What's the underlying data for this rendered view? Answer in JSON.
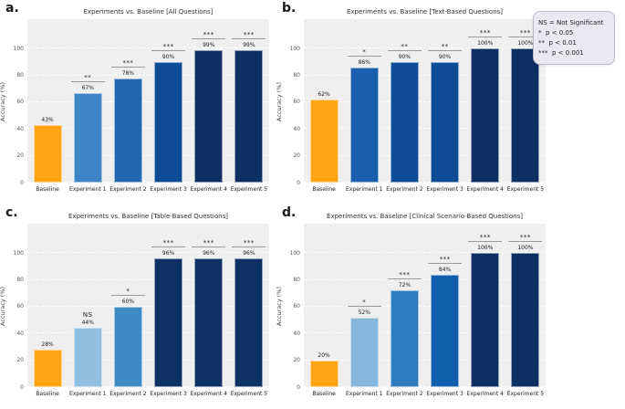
{
  "figure": {
    "ylabel": "Accuracy (%)",
    "yticks": [
      0,
      20,
      40,
      60,
      80,
      100
    ],
    "ylim": [
      0,
      122
    ],
    "categories": [
      "Baseline",
      "Experiment 1",
      "Experiment 2",
      "Experiment 3",
      "Experiment 4",
      "Experiment 5"
    ],
    "baseline_color": "#ffa513",
    "plot_background": "#efeff0"
  },
  "chart_data": [
    {
      "type": "bar",
      "panel_letter": "a.",
      "title": "Experiments vs. Baseline [All Questions]",
      "categories": [
        "Baseline",
        "Experiment 1",
        "Experiment 2",
        "Experiment 3",
        "Experiment 4",
        "Experiment 5"
      ],
      "values": [
        43,
        67,
        78,
        90,
        99,
        99
      ],
      "value_labels": [
        "43%",
        "67%",
        "78%",
        "90%",
        "99%",
        "99%"
      ],
      "significance": [
        "",
        "**",
        "***",
        "***",
        "***",
        "***"
      ],
      "bar_colors": [
        "#ffa513",
        "#3d85c6",
        "#2268ae",
        "#0f4c96",
        "#0c2e63",
        "#0c2e63"
      ],
      "dotted": [
        false,
        false,
        false,
        false,
        false,
        false
      ],
      "xlabel": "",
      "ylabel": "Accuracy (%)",
      "ylim": [
        0,
        122
      ],
      "grid": true,
      "legend_position": "none"
    },
    {
      "type": "bar",
      "panel_letter": "b.",
      "title": "Experiments vs. Baseline [Text-Based Questions]",
      "categories": [
        "Baseline",
        "Experiment 1",
        "Experiment 2",
        "Experiment 3",
        "Experiment 4",
        "Experiment 5"
      ],
      "values": [
        62,
        86,
        90,
        90,
        100,
        100
      ],
      "value_labels": [
        "62%",
        "86%",
        "90%",
        "90%",
        "100%",
        "100%"
      ],
      "significance": [
        "",
        "*",
        "**",
        "**",
        "***",
        "***"
      ],
      "bar_colors": [
        "#ffa513",
        "#1a5fae",
        "#0f4c96",
        "#0f4c96",
        "#0c2e63",
        "#0c2e63"
      ],
      "dotted": [
        false,
        true,
        false,
        false,
        false,
        false
      ],
      "xlabel": "",
      "ylabel": "Accuracy (%)",
      "ylim": [
        0,
        122
      ],
      "grid": true,
      "legend_position": "none"
    },
    {
      "type": "bar",
      "panel_letter": "c.",
      "title": "Experiments vs. Baseline [Table-Based Questions]",
      "categories": [
        "Baseline",
        "Experiment 1",
        "Experiment 2",
        "Experiment 3",
        "Experiment 4",
        "Experiment 5"
      ],
      "values": [
        28,
        44,
        60,
        96,
        96,
        96
      ],
      "value_labels": [
        "28%",
        "44%",
        "60%",
        "96%",
        "96%",
        "96%"
      ],
      "significance": [
        "",
        "NS",
        "*",
        "***",
        "***",
        "***"
      ],
      "bar_colors": [
        "#ffa513",
        "#8fbedf",
        "#3d8ac4",
        "#0d3065",
        "#0d3065",
        "#0d3065"
      ],
      "dotted": [
        false,
        false,
        false,
        false,
        false,
        false
      ],
      "xlabel": "",
      "ylabel": "Accuracy (%)",
      "ylim": [
        0,
        122
      ],
      "grid": true,
      "legend_position": "none"
    },
    {
      "type": "bar",
      "panel_letter": "d.",
      "title": "Experiments vs. Baseline [Clinical Scenario-Based Questions]",
      "categories": [
        "Baseline",
        "Experiment 1",
        "Experiment 2",
        "Experiment 3",
        "Experiment 4",
        "Experiment 5"
      ],
      "values": [
        20,
        52,
        72,
        84,
        100,
        100
      ],
      "value_labels": [
        "20%",
        "52%",
        "72%",
        "84%",
        "100%",
        "100%"
      ],
      "significance": [
        "",
        "*",
        "***",
        "***",
        "***",
        "***"
      ],
      "bar_colors": [
        "#ffa513",
        "#85b7dc",
        "#2e7bbd",
        "#1160ae",
        "#0c2e63",
        "#0c2e63"
      ],
      "dotted": [
        false,
        false,
        false,
        true,
        false,
        false
      ],
      "xlabel": "",
      "ylabel": "Accuracy (%)",
      "ylim": [
        0,
        122
      ],
      "grid": true,
      "legend_position": "none"
    }
  ],
  "legend_box": {
    "lines": [
      "NS = Not Significant",
      "*  p < 0.05",
      "**  p < 0.01",
      "***  p < 0.001"
    ]
  }
}
